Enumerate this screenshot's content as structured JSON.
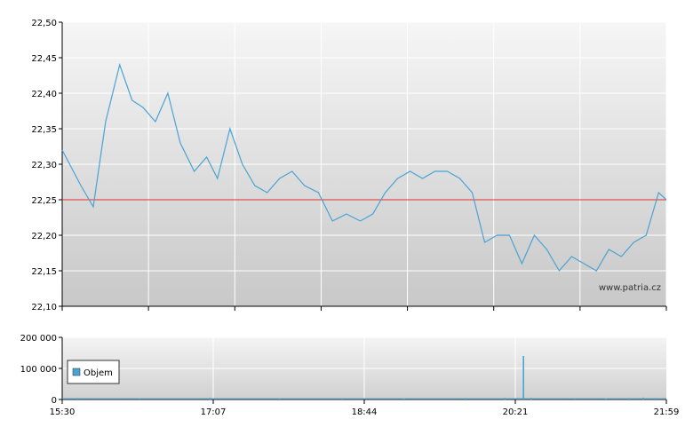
{
  "chart_data": [
    {
      "type": "line",
      "y_ticks": [
        "22,10",
        "22,15",
        "22,20",
        "22,25",
        "22,30",
        "22,35",
        "22,40",
        "22,45",
        "22,50"
      ],
      "ylim": [
        22.1,
        22.5
      ],
      "reference_line": {
        "value": 22.25,
        "color": "#e0312b"
      },
      "line_color": "#4aa3d4",
      "grid": true,
      "watermark": "www.patria.cz",
      "series": [
        {
          "x": [
            "15:30",
            "15:42",
            "15:50",
            "15:58",
            "16:07",
            "16:15",
            "16:22",
            "16:30",
            "16:38",
            "16:46",
            "16:55",
            "17:03",
            "17:10",
            "17:18",
            "17:26",
            "17:34",
            "17:42",
            "17:50",
            "17:58",
            "18:06",
            "18:15",
            "18:24",
            "18:33",
            "18:42",
            "18:50",
            "18:58",
            "19:06",
            "19:14",
            "19:22",
            "19:30",
            "19:38",
            "19:46",
            "19:54",
            "20:02",
            "20:10",
            "20:18",
            "20:26",
            "20:34",
            "20:42",
            "20:50",
            "20:58",
            "21:06",
            "21:14",
            "21:22",
            "21:30",
            "21:38",
            "21:46",
            "21:54",
            "21:59"
          ],
          "values": [
            22.32,
            22.27,
            22.24,
            22.36,
            22.44,
            22.39,
            22.38,
            22.36,
            22.4,
            22.33,
            22.29,
            22.31,
            22.28,
            22.35,
            22.3,
            22.27,
            22.26,
            22.28,
            22.29,
            22.27,
            22.26,
            22.22,
            22.23,
            22.22,
            22.23,
            22.26,
            22.28,
            22.29,
            22.28,
            22.29,
            22.29,
            22.28,
            22.26,
            22.19,
            22.2,
            22.2,
            22.16,
            22.2,
            22.18,
            22.15,
            22.17,
            22.16,
            22.15,
            22.18,
            22.17,
            22.19,
            22.2,
            22.26,
            22.25
          ]
        }
      ]
    },
    {
      "type": "bar",
      "y_ticks": [
        "0",
        "100 000",
        "200 000"
      ],
      "ylim": [
        0,
        200000
      ],
      "x_ticks": [
        "15:30",
        "17:07",
        "18:44",
        "20:21",
        "21:59"
      ],
      "legend": {
        "label": "Objem",
        "placement": "left"
      },
      "bar_color": "#4aa3d4",
      "series": [
        {
          "name": "Objem",
          "x": [
            "15:40",
            "16:20",
            "17:05",
            "17:50",
            "18:30",
            "19:10",
            "19:50",
            "20:15",
            "20:24",
            "20:27",
            "20:32",
            "21:00",
            "21:20",
            "21:35",
            "21:44",
            "21:52"
          ],
          "values": [
            4000,
            3000,
            5000,
            2000,
            3000,
            2000,
            4000,
            5000,
            4000,
            140000,
            5000,
            3000,
            2000,
            4000,
            6000,
            4000
          ]
        }
      ]
    }
  ]
}
